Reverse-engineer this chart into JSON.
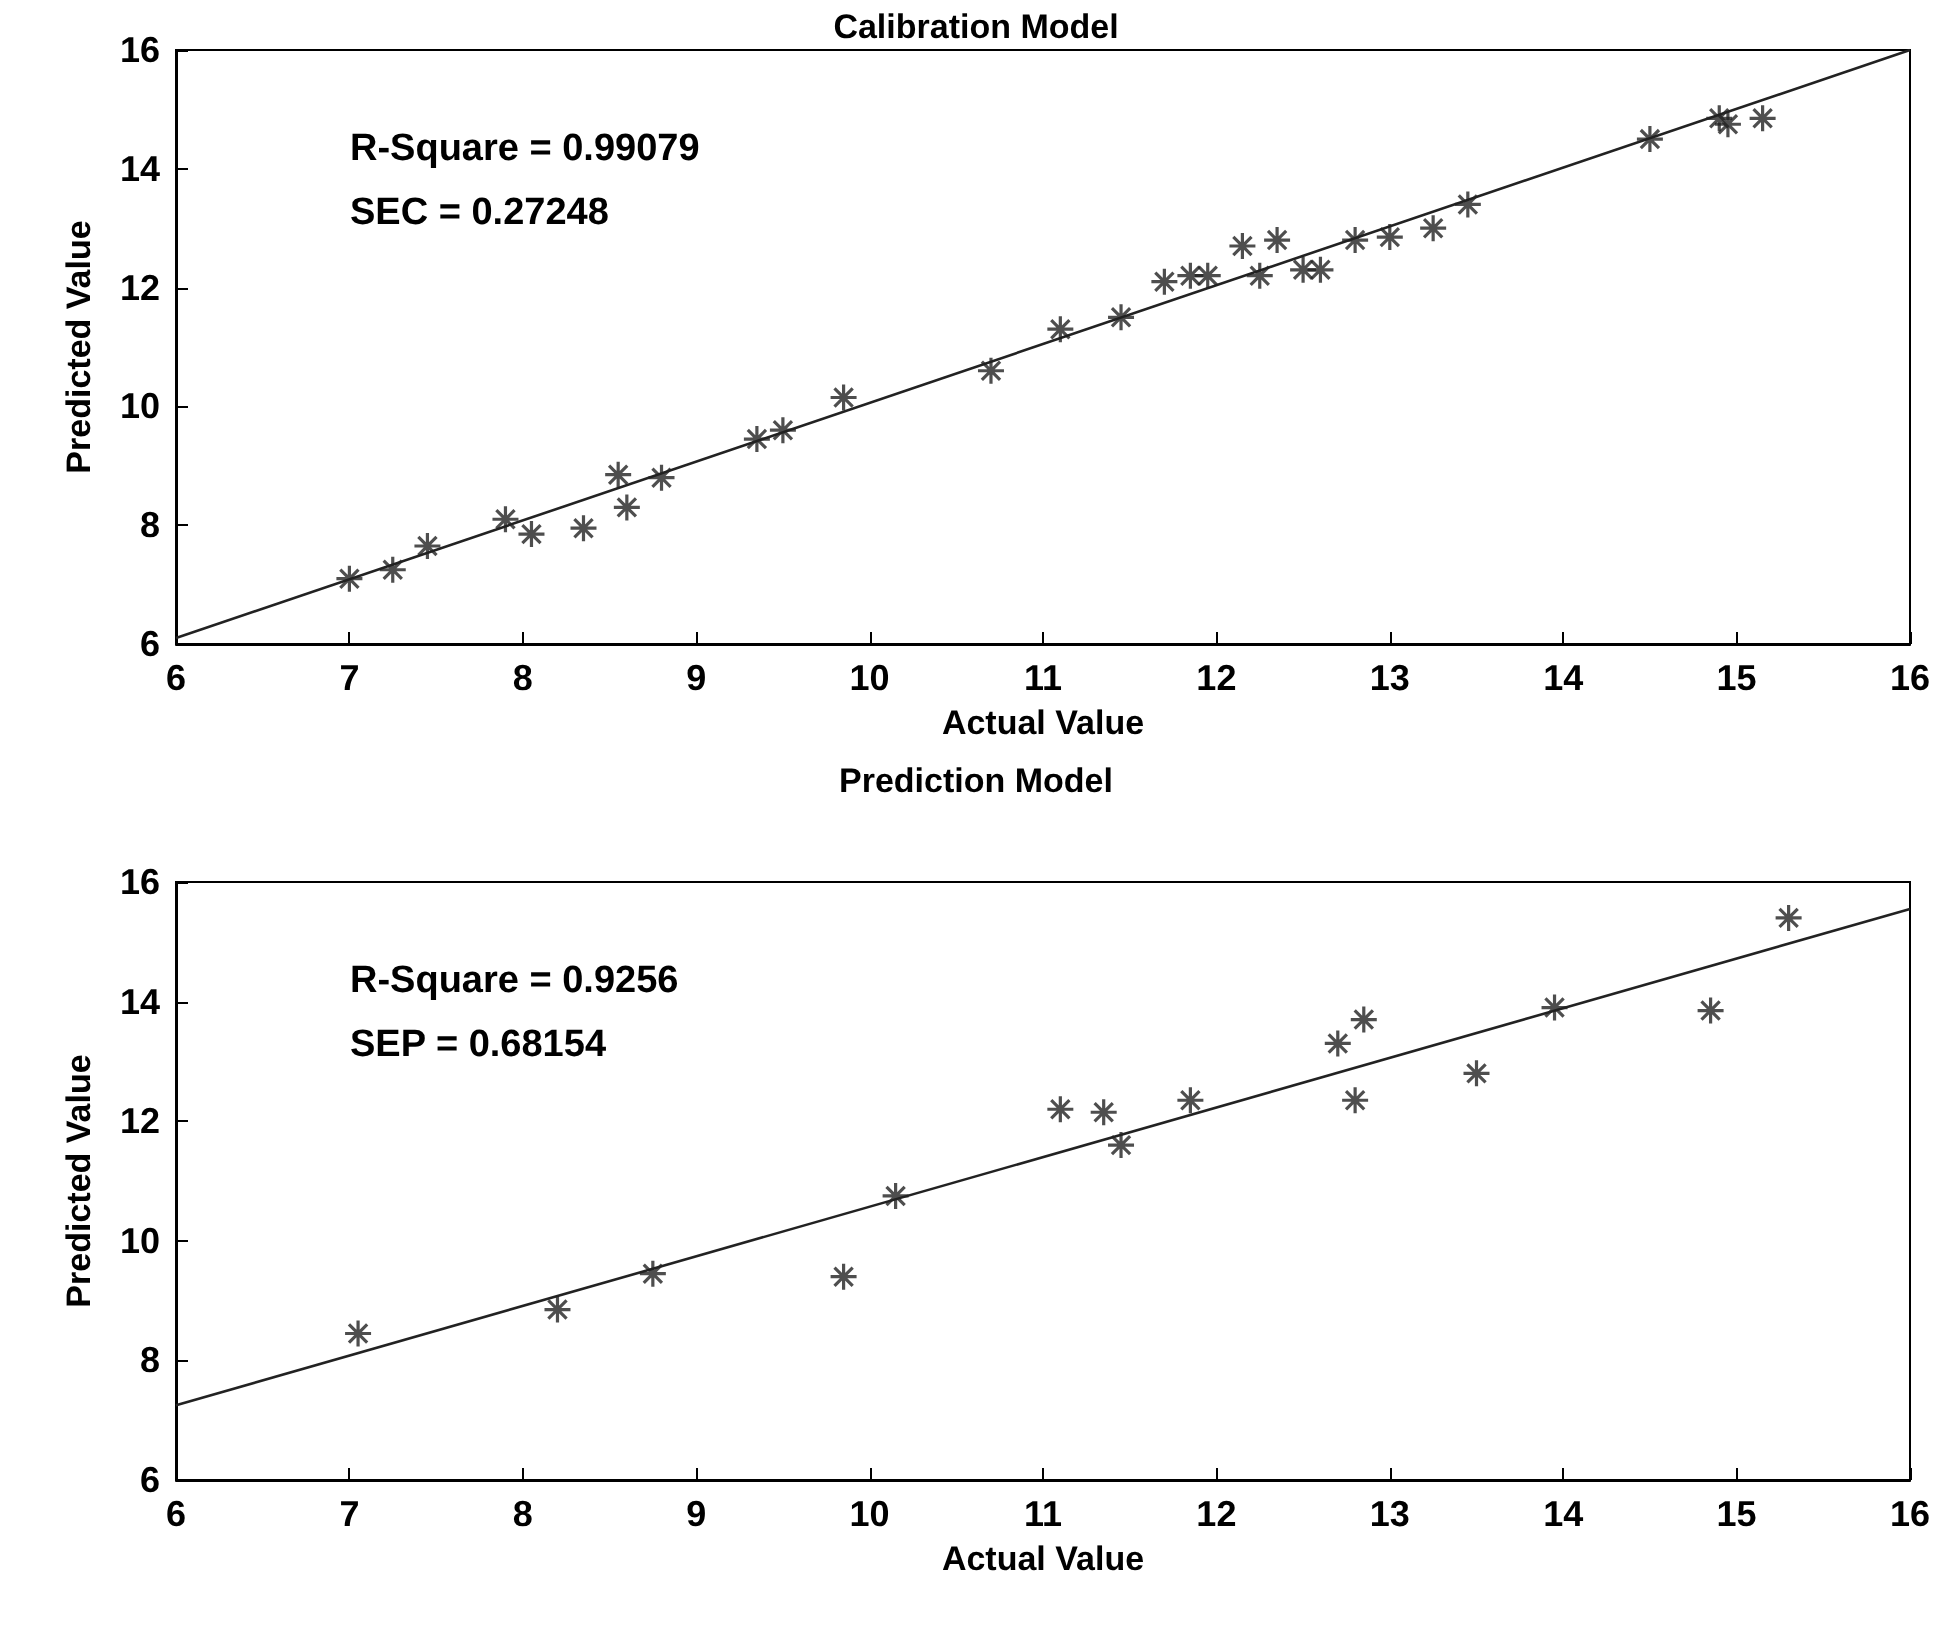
{
  "chart_data": [
    {
      "type": "scatter",
      "title": "Calibration Model",
      "xlabel": "Actual Value",
      "ylabel": "Predicted Value",
      "annotations": [
        "R-Square = 0.99079",
        "SEC = 0.27248"
      ],
      "xlim": [
        6,
        16
      ],
      "xticks": [
        6,
        7,
        8,
        9,
        10,
        11,
        12,
        13,
        14,
        15,
        16
      ],
      "ylim": [
        6,
        16
      ],
      "yticks": [
        6,
        8,
        10,
        12,
        14,
        16
      ],
      "grid": false,
      "marker": "cross",
      "series": [
        {
          "color": "#222222",
          "x": [
            7.0,
            7.25,
            7.45,
            7.9,
            8.05,
            8.35,
            8.55,
            8.6,
            8.8,
            9.35,
            9.5,
            9.85,
            10.7,
            11.1,
            11.45,
            11.7,
            11.85,
            11.95,
            12.15,
            12.25,
            12.35,
            12.5,
            12.6,
            12.8,
            13.0,
            13.25,
            13.45,
            14.5,
            14.9,
            14.95,
            15.15
          ],
          "values": [
            7.1,
            7.25,
            7.65,
            8.1,
            7.85,
            7.95,
            8.85,
            8.3,
            8.8,
            9.45,
            9.6,
            10.15,
            10.6,
            11.3,
            11.5,
            12.1,
            12.2,
            12.2,
            12.7,
            12.2,
            12.8,
            12.3,
            12.3,
            12.8,
            12.85,
            13.0,
            13.4,
            14.5,
            14.85,
            14.75,
            14.85
          ]
        },
        {
          "type": "line",
          "color": "#222222",
          "line_style": "solid",
          "marker": "none",
          "x": [
            6,
            16
          ],
          "values": [
            6.1,
            16
          ]
        }
      ]
    },
    {
      "type": "scatter",
      "title": "Prediction Model",
      "xlabel": "Actual Value",
      "ylabel": "Predicted Value",
      "annotations": [
        "R-Square = 0.9256",
        "SEP = 0.68154"
      ],
      "xlim": [
        6,
        16
      ],
      "xticks": [
        6,
        7,
        8,
        9,
        10,
        11,
        12,
        13,
        14,
        15,
        16
      ],
      "ylim": [
        6,
        16
      ],
      "yticks": [
        6,
        8,
        10,
        12,
        14,
        16
      ],
      "grid": false,
      "marker": "cross",
      "series": [
        {
          "color": "#222222",
          "x": [
            7.05,
            8.2,
            8.75,
            9.85,
            10.15,
            11.1,
            11.35,
            11.45,
            11.85,
            12.7,
            12.85,
            12.8,
            13.5,
            13.95,
            14.85,
            15.3
          ],
          "values": [
            8.45,
            8.85,
            9.45,
            9.4,
            10.75,
            12.2,
            12.15,
            11.6,
            12.35,
            13.3,
            13.7,
            12.35,
            12.8,
            13.9,
            13.85,
            15.4
          ]
        },
        {
          "type": "line",
          "color": "#222222",
          "line_style": "solid",
          "marker": "none",
          "x": [
            6,
            16
          ],
          "values": [
            7.25,
            15.55
          ]
        }
      ]
    }
  ]
}
